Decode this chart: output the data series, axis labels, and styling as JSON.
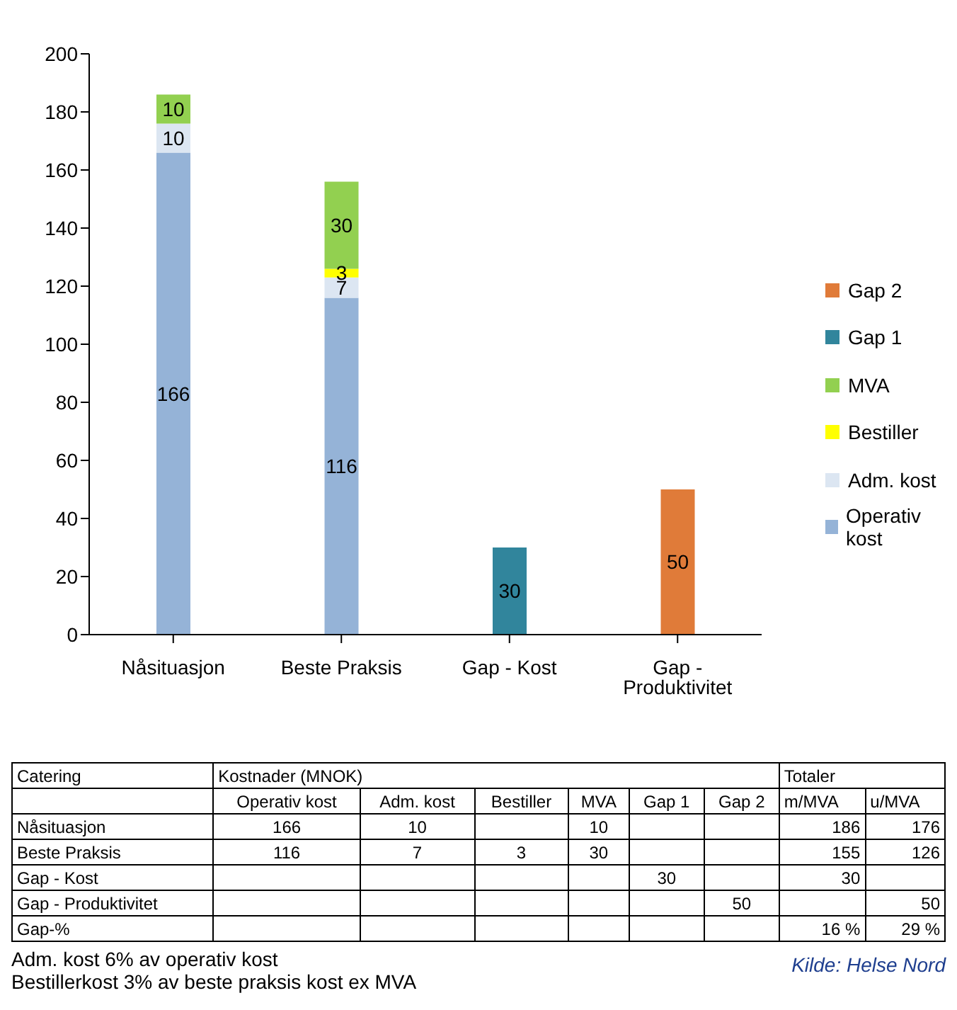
{
  "chart_data": [
    {
      "type": "bar",
      "categories": [
        "Nåsituasjon",
        "Beste Praksis",
        "Gap - Kost",
        "Gap - Produktivitet"
      ],
      "stacked": true,
      "series": [
        {
          "name": "Operativ kost",
          "color": "#95b3d7",
          "values": [
            166,
            116,
            null,
            null
          ]
        },
        {
          "name": "Adm. kost",
          "color": "#dce6f2",
          "values": [
            10,
            7,
            null,
            null
          ]
        },
        {
          "name": "Bestiller",
          "color": "#ffff00",
          "values": [
            null,
            3,
            null,
            null
          ]
        },
        {
          "name": "MVA",
          "color": "#92d050",
          "values": [
            10,
            30,
            null,
            null
          ]
        },
        {
          "name": "Gap 1",
          "color": "#31859c",
          "values": [
            null,
            null,
            30,
            null
          ]
        },
        {
          "name": "Gap 2",
          "color": "#e07b39",
          "values": [
            null,
            null,
            null,
            50
          ]
        }
      ],
      "ylim": [
        0,
        200
      ],
      "yticks": [
        0,
        20,
        40,
        60,
        80,
        100,
        120,
        140,
        160,
        180,
        200
      ],
      "legend": "right",
      "data_labels": true
    },
    {
      "type": "other",
      "categories": [
        "Nåsituasjon",
        "Beste Praksis",
        "Gap - Kost",
        "Gap - Produktivitet",
        "Gap-%"
      ],
      "series": [
        {
          "name": "Operativ kost",
          "values": [
            166,
            116,
            null,
            null,
            null
          ]
        },
        {
          "name": "Adm. kost",
          "values": [
            10,
            7,
            null,
            null,
            null
          ]
        },
        {
          "name": "Bestiller",
          "values": [
            null,
            3,
            null,
            null,
            null
          ]
        },
        {
          "name": "MVA",
          "values": [
            10,
            30,
            null,
            null,
            null
          ]
        },
        {
          "name": "Gap 1",
          "values": [
            null,
            null,
            30,
            null,
            null
          ]
        },
        {
          "name": "Gap 2",
          "values": [
            null,
            null,
            null,
            50,
            null
          ]
        },
        {
          "name": "m/MVA",
          "values": [
            186,
            155,
            30,
            null,
            16
          ],
          "value_labels": [
            "186",
            "155",
            "30",
            null,
            "16 %"
          ]
        },
        {
          "name": "u/MVA",
          "values": [
            176,
            126,
            null,
            50,
            29
          ],
          "value_labels": [
            "176",
            "126",
            null,
            "50",
            "29 %"
          ]
        }
      ],
      "data_labels": true,
      "annotations": [
        "Catering",
        "Kostnader (MNOK)",
        "Totaler",
        "Adm. kost 6% av operativ kost",
        "Bestillerkost 3% av beste praksis kost ex MVA",
        "Kilde: Helse Nord"
      ]
    }
  ]
}
